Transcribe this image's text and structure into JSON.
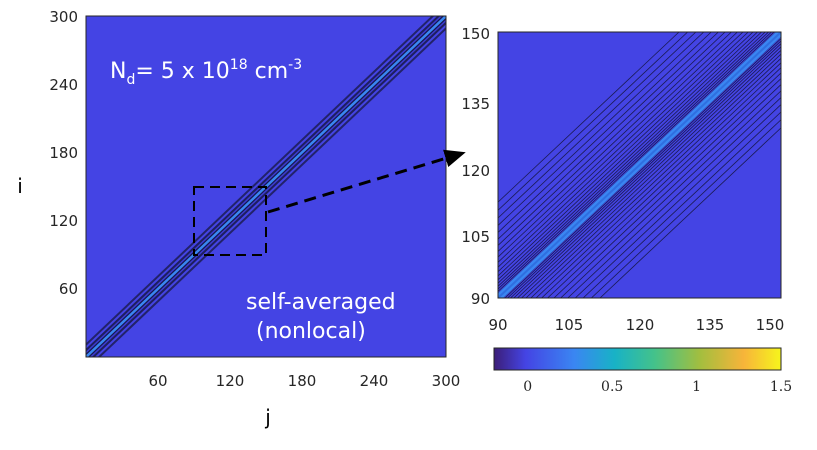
{
  "chart_data": [
    {
      "type": "heatmap",
      "name": "full-matrix",
      "xlabel": "j",
      "ylabel": "i",
      "xlim": [
        0,
        300
      ],
      "ylim": [
        0,
        300
      ],
      "xticks": [
        "60",
        "120",
        "180",
        "240",
        "300"
      ],
      "yticks": [
        "60",
        "120",
        "180",
        "240",
        "300"
      ],
      "diagonal_band": true,
      "background_value": 0,
      "annotation_density": {
        "prefix": "N",
        "subscript": "d",
        "mid": "= 5 x 10",
        "superscript": "18",
        "unit": " cm",
        "unit_exp": "-3"
      },
      "annotation_label": [
        "self-averaged",
        "(nonlocal)"
      ],
      "zoom_region": {
        "x": [
          90,
          150
        ],
        "y": [
          90,
          150
        ]
      }
    },
    {
      "type": "heatmap",
      "name": "zoomed-matrix",
      "xlim": [
        90,
        150
      ],
      "ylim": [
        90,
        150
      ],
      "xticks": [
        "90",
        "105",
        "120",
        "135",
        "150"
      ],
      "yticks": [
        "90",
        "105",
        "120",
        "135",
        "150"
      ],
      "diagonal_band": true,
      "contour_lines": true
    },
    {
      "type": "colorbar",
      "name": "colormap",
      "range": [
        -0.2,
        1.5
      ],
      "ticks": [
        "0",
        "0.5",
        "1",
        "1.5"
      ],
      "tick_values": [
        0,
        0.5,
        1,
        1.5
      ]
    }
  ],
  "colors": {
    "background": "#4444e4",
    "band_light": "#3a86f2",
    "contour": "#1a1a52",
    "stops": [
      "#3c1e78",
      "#4444e4",
      "#3a86f2",
      "#18b2c6",
      "#44c28a",
      "#a4be3e",
      "#f7b43a",
      "#f6f51c"
    ]
  }
}
